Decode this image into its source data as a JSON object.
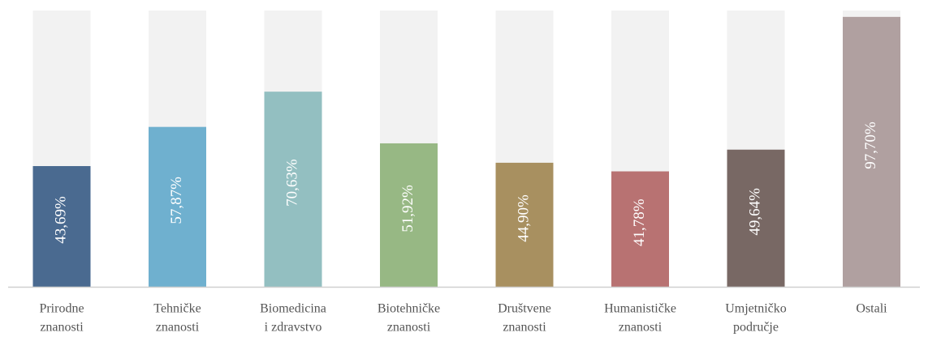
{
  "chart_data": {
    "type": "bar",
    "categories": [
      [
        "Prirodne",
        "znanosti"
      ],
      [
        "Tehničke",
        "znanosti"
      ],
      [
        "Biomedicina",
        "i zdravstvo"
      ],
      [
        "Biotehničke",
        "znanosti"
      ],
      [
        "Društvene",
        "znanosti"
      ],
      [
        "Humanističke",
        "znanosti"
      ],
      [
        "Umjetničko",
        "područje"
      ],
      [
        "Ostali"
      ]
    ],
    "values": [
      43.69,
      57.87,
      70.63,
      51.92,
      44.9,
      41.78,
      49.64,
      97.7
    ],
    "value_labels": [
      "43,69%",
      "57,87%",
      "70,63%",
      "51,92%",
      "44,90%",
      "41,78%",
      "49,64%",
      "97,70%"
    ],
    "colors": [
      "#4a6a90",
      "#6fb0cf",
      "#93bfc1",
      "#97b884",
      "#a89060",
      "#b87272",
      "#786864",
      "#b0a0a0"
    ],
    "ylim": [
      0,
      100
    ]
  }
}
